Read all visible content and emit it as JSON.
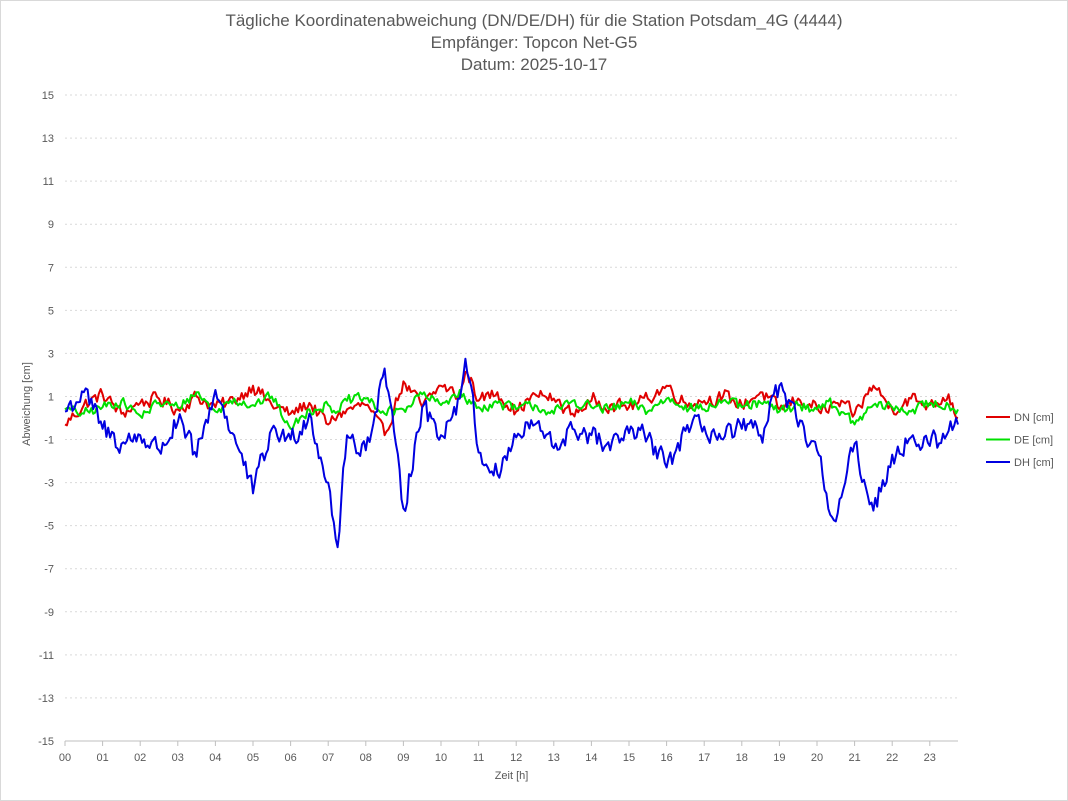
{
  "chart_data": {
    "type": "line",
    "title_lines": [
      "Tägliche Koordinatenabweichung (DN/DE/DH) für die Station Potsdam_4G (4444)",
      "Empfänger: Topcon Net-G5",
      "Datum: 2025-10-17"
    ],
    "xlabel": "Zeit [h]",
    "ylabel": "Abweichung [cm]",
    "ylim": [
      -15,
      15
    ],
    "xlim": [
      0,
      24
    ],
    "grid": "horizontal dotted",
    "legend_placement": "right",
    "x_tick_labels": [
      "00",
      "01",
      "02",
      "03",
      "04",
      "05",
      "06",
      "07",
      "08",
      "09",
      "10",
      "11",
      "12",
      "13",
      "14",
      "15",
      "16",
      "17",
      "18",
      "19",
      "20",
      "21",
      "22",
      "23"
    ],
    "y_ticks": [
      15,
      13,
      11,
      9,
      7,
      5,
      3,
      1,
      -1,
      -3,
      -5,
      -7,
      -9,
      -11,
      -13,
      -15
    ],
    "x": [
      0.0,
      0.5,
      1.0,
      1.5,
      2.0,
      2.5,
      3.0,
      3.5,
      4.0,
      4.5,
      5.0,
      5.5,
      6.0,
      6.5,
      7.0,
      7.25,
      7.5,
      8.0,
      8.5,
      9.0,
      9.5,
      10.0,
      10.5,
      10.67,
      11.0,
      11.5,
      12.0,
      12.5,
      13.0,
      13.5,
      14.0,
      14.5,
      15.0,
      15.5,
      16.0,
      16.5,
      17.0,
      17.5,
      18.0,
      18.5,
      19.0,
      19.5,
      20.0,
      20.25,
      20.5,
      21.0,
      21.5,
      22.0,
      22.5,
      23.0,
      23.5,
      23.75
    ],
    "series": [
      {
        "name": "DN [cm]",
        "color": "#e00000",
        "values": [
          -0.3,
          0.6,
          1.1,
          0.2,
          0.7,
          0.9,
          0.4,
          1.0,
          0.5,
          0.8,
          1.5,
          0.6,
          0.2,
          0.7,
          -0.3,
          0.1,
          0.4,
          0.6,
          -0.8,
          1.7,
          0.5,
          1.5,
          1.0,
          2.3,
          0.8,
          1.2,
          0.3,
          1.1,
          0.9,
          0.2,
          0.8,
          0.6,
          0.5,
          0.9,
          1.5,
          0.7,
          0.8,
          1.0,
          0.6,
          1.2,
          0.4,
          0.9,
          0.5,
          0.3,
          0.7,
          0.2,
          1.5,
          0.4,
          0.9,
          0.6,
          1.1,
          0.0
        ]
      },
      {
        "name": "DE [cm]",
        "color": "#00e000",
        "values": [
          0.4,
          0.2,
          0.5,
          0.8,
          0.1,
          0.7,
          0.5,
          1.2,
          0.3,
          0.9,
          0.6,
          1.0,
          -0.5,
          0.4,
          0.6,
          0.3,
          0.8,
          0.9,
          0.2,
          0.4,
          1.1,
          0.6,
          1.3,
          0.8,
          0.5,
          0.7,
          0.4,
          0.6,
          0.2,
          0.8,
          0.5,
          0.4,
          0.7,
          0.3,
          0.9,
          0.6,
          0.4,
          0.8,
          0.5,
          0.7,
          0.3,
          0.6,
          0.4,
          0.8,
          0.5,
          -0.3,
          0.6,
          0.5,
          0.3,
          0.7,
          0.6,
          0.4
        ]
      },
      {
        "name": "DH [cm]",
        "color": "#0000e0",
        "values": [
          0.3,
          1.2,
          -0.5,
          -1.2,
          -0.8,
          -1.5,
          -0.2,
          -1.8,
          1.3,
          -0.8,
          -3.5,
          -0.5,
          -1.0,
          0.2,
          -3.0,
          -6.0,
          -0.8,
          -1.5,
          2.3,
          -4.2,
          0.5,
          -0.8,
          0.9,
          3.0,
          -1.6,
          -2.6,
          -0.9,
          -0.3,
          -1.4,
          -0.5,
          -0.8,
          -1.5,
          -0.7,
          -0.9,
          -2.3,
          -0.6,
          -0.4,
          -1.0,
          -0.5,
          -0.8,
          1.5,
          -0.4,
          -1.5,
          -3.5,
          -4.8,
          -1.2,
          -4.3,
          -1.7,
          -0.9,
          -1.3,
          -0.6,
          -0.3
        ]
      }
    ]
  }
}
